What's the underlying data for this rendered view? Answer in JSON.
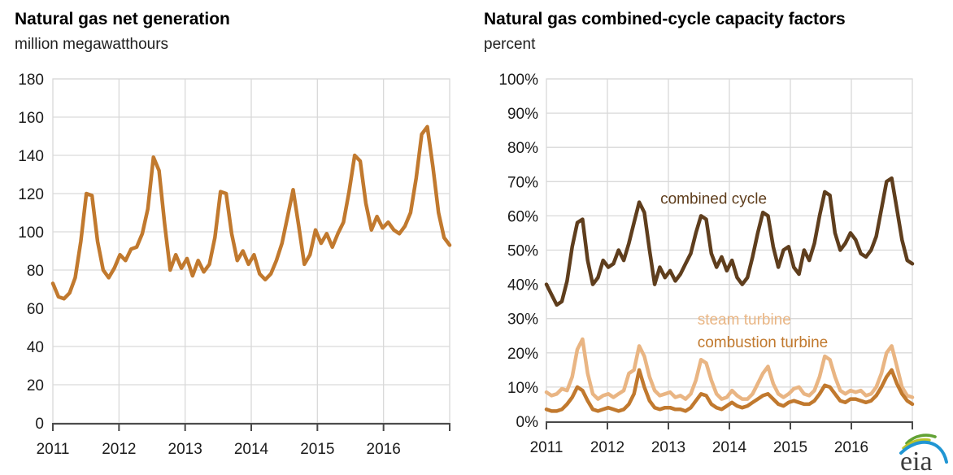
{
  "logo": {
    "text": "eia"
  },
  "colors": {
    "net_generation_line": "#c1792e",
    "combined_cycle_line": "#5f3e1d",
    "steam_turbine_line": "#e9b583",
    "combustion_turbine_line": "#c1792e",
    "gridline": "#d9d9d9",
    "axis": "#4a4a4a",
    "tick_text": "#1a1a1a"
  },
  "chart_data": [
    {
      "type": "line",
      "title": "Natural gas net generation",
      "subtitle": "million megawatthours",
      "xlabel": "",
      "ylabel": "million megawatthours",
      "x_unit": "month",
      "x_start": "2011-01",
      "x_end": "2016-12",
      "x_tick_labels": [
        "2011",
        "2012",
        "2013",
        "2014",
        "2015",
        "2016"
      ],
      "ylim": [
        0,
        180
      ],
      "y_step": 20,
      "y_tick_labels": [
        "0",
        "20",
        "40",
        "60",
        "80",
        "100",
        "120",
        "140",
        "160",
        "180"
      ],
      "grid": true,
      "legend_position": "none",
      "series": [
        {
          "name": "natural gas net generation",
          "color": "#c1792e",
          "values": [
            73,
            66,
            65,
            68,
            76,
            95,
            120,
            119,
            95,
            80,
            76,
            81,
            88,
            85,
            91,
            92,
            99,
            112,
            139,
            132,
            104,
            80,
            88,
            81,
            86,
            77,
            85,
            79,
            83,
            97,
            121,
            120,
            99,
            85,
            90,
            83,
            88,
            78,
            75,
            78,
            85,
            94,
            108,
            122,
            103,
            83,
            88,
            101,
            94,
            99,
            92,
            99,
            105,
            121,
            140,
            137,
            115,
            101,
            108,
            102,
            105,
            101,
            99,
            103,
            110,
            128,
            151,
            155,
            134,
            110,
            97,
            93
          ]
        }
      ],
      "annotations": []
    },
    {
      "type": "line",
      "title": "Natural gas combined-cycle capacity factors",
      "subtitle": "percent",
      "xlabel": "",
      "ylabel": "percent",
      "x_unit": "month",
      "x_start": "2011-01",
      "x_end": "2016-12",
      "x_tick_labels": [
        "2011",
        "2012",
        "2013",
        "2014",
        "2015",
        "2016"
      ],
      "ylim": [
        0,
        100
      ],
      "y_step": 10,
      "y_tick_labels": [
        "0%",
        "10%",
        "20%",
        "30%",
        "40%",
        "50%",
        "60%",
        "70%",
        "80%",
        "90%",
        "100%"
      ],
      "grid": true,
      "legend_position": "inline-labels",
      "series": [
        {
          "name": "steam turbine",
          "color": "#e9b583",
          "values": [
            8.5,
            7.5,
            8,
            9.5,
            9,
            13,
            21,
            24,
            14,
            8,
            6.5,
            7.5,
            8,
            7,
            8,
            9,
            14,
            15,
            22,
            19,
            13,
            9,
            7.5,
            8,
            8.5,
            7,
            7.5,
            6.5,
            8,
            12,
            18,
            17,
            12,
            8,
            6.5,
            7,
            9,
            7.5,
            6.5,
            6.5,
            8,
            11,
            14,
            16,
            11,
            8,
            7,
            8,
            9.5,
            10,
            8,
            7.5,
            9,
            13,
            19,
            18,
            13,
            9,
            8,
            9,
            8.5,
            9,
            7.5,
            8,
            10,
            14,
            20,
            22,
            16,
            10,
            7.5,
            7
          ]
        },
        {
          "name": "combustion turbine",
          "color": "#c1792e",
          "values": [
            3.5,
            3,
            3,
            3.5,
            5,
            7,
            10,
            9,
            6,
            3.5,
            3,
            3.5,
            4,
            3.5,
            3,
            3.5,
            5,
            8,
            15,
            10,
            6,
            4,
            3.5,
            4,
            4,
            3.5,
            3.5,
            3,
            4,
            6,
            8,
            7.5,
            5,
            4,
            3.5,
            4.5,
            5.5,
            4.5,
            4,
            4.5,
            5.5,
            6.5,
            7.5,
            8,
            6.5,
            5,
            4.5,
            5.5,
            6,
            5.5,
            5,
            5,
            6,
            8,
            10.5,
            10,
            8,
            6,
            5.5,
            6.5,
            6.5,
            6,
            5.5,
            6,
            7.5,
            10,
            13,
            15,
            11,
            8,
            6,
            5
          ]
        },
        {
          "name": "combined cycle",
          "color": "#5f3e1d",
          "values": [
            40,
            37,
            34,
            35,
            41,
            51,
            58,
            59,
            47,
            40,
            42,
            47,
            45,
            46,
            50,
            47,
            52,
            58,
            64,
            61,
            50,
            40,
            45,
            42,
            44,
            41,
            43,
            46,
            49,
            55,
            60,
            59,
            49,
            45,
            48,
            44,
            47,
            42,
            40,
            42,
            48,
            55,
            61,
            60,
            51,
            45,
            50,
            51,
            45,
            43,
            50,
            47,
            52,
            60,
            67,
            66,
            55,
            50,
            52,
            55,
            53,
            49,
            48,
            50,
            54,
            62,
            70,
            71,
            62,
            53,
            47,
            46
          ]
        }
      ],
      "annotations": [
        {
          "text": "combined cycle",
          "color": "#5f3e1d",
          "month": 22.1,
          "value": 63.5
        },
        {
          "text": "steam turbine",
          "color": "#e9b583",
          "month": 29.3,
          "value": 28.3
        },
        {
          "text": "combustion turbine",
          "color": "#c1792e",
          "month": 29.3,
          "value": 21.6
        }
      ]
    }
  ]
}
